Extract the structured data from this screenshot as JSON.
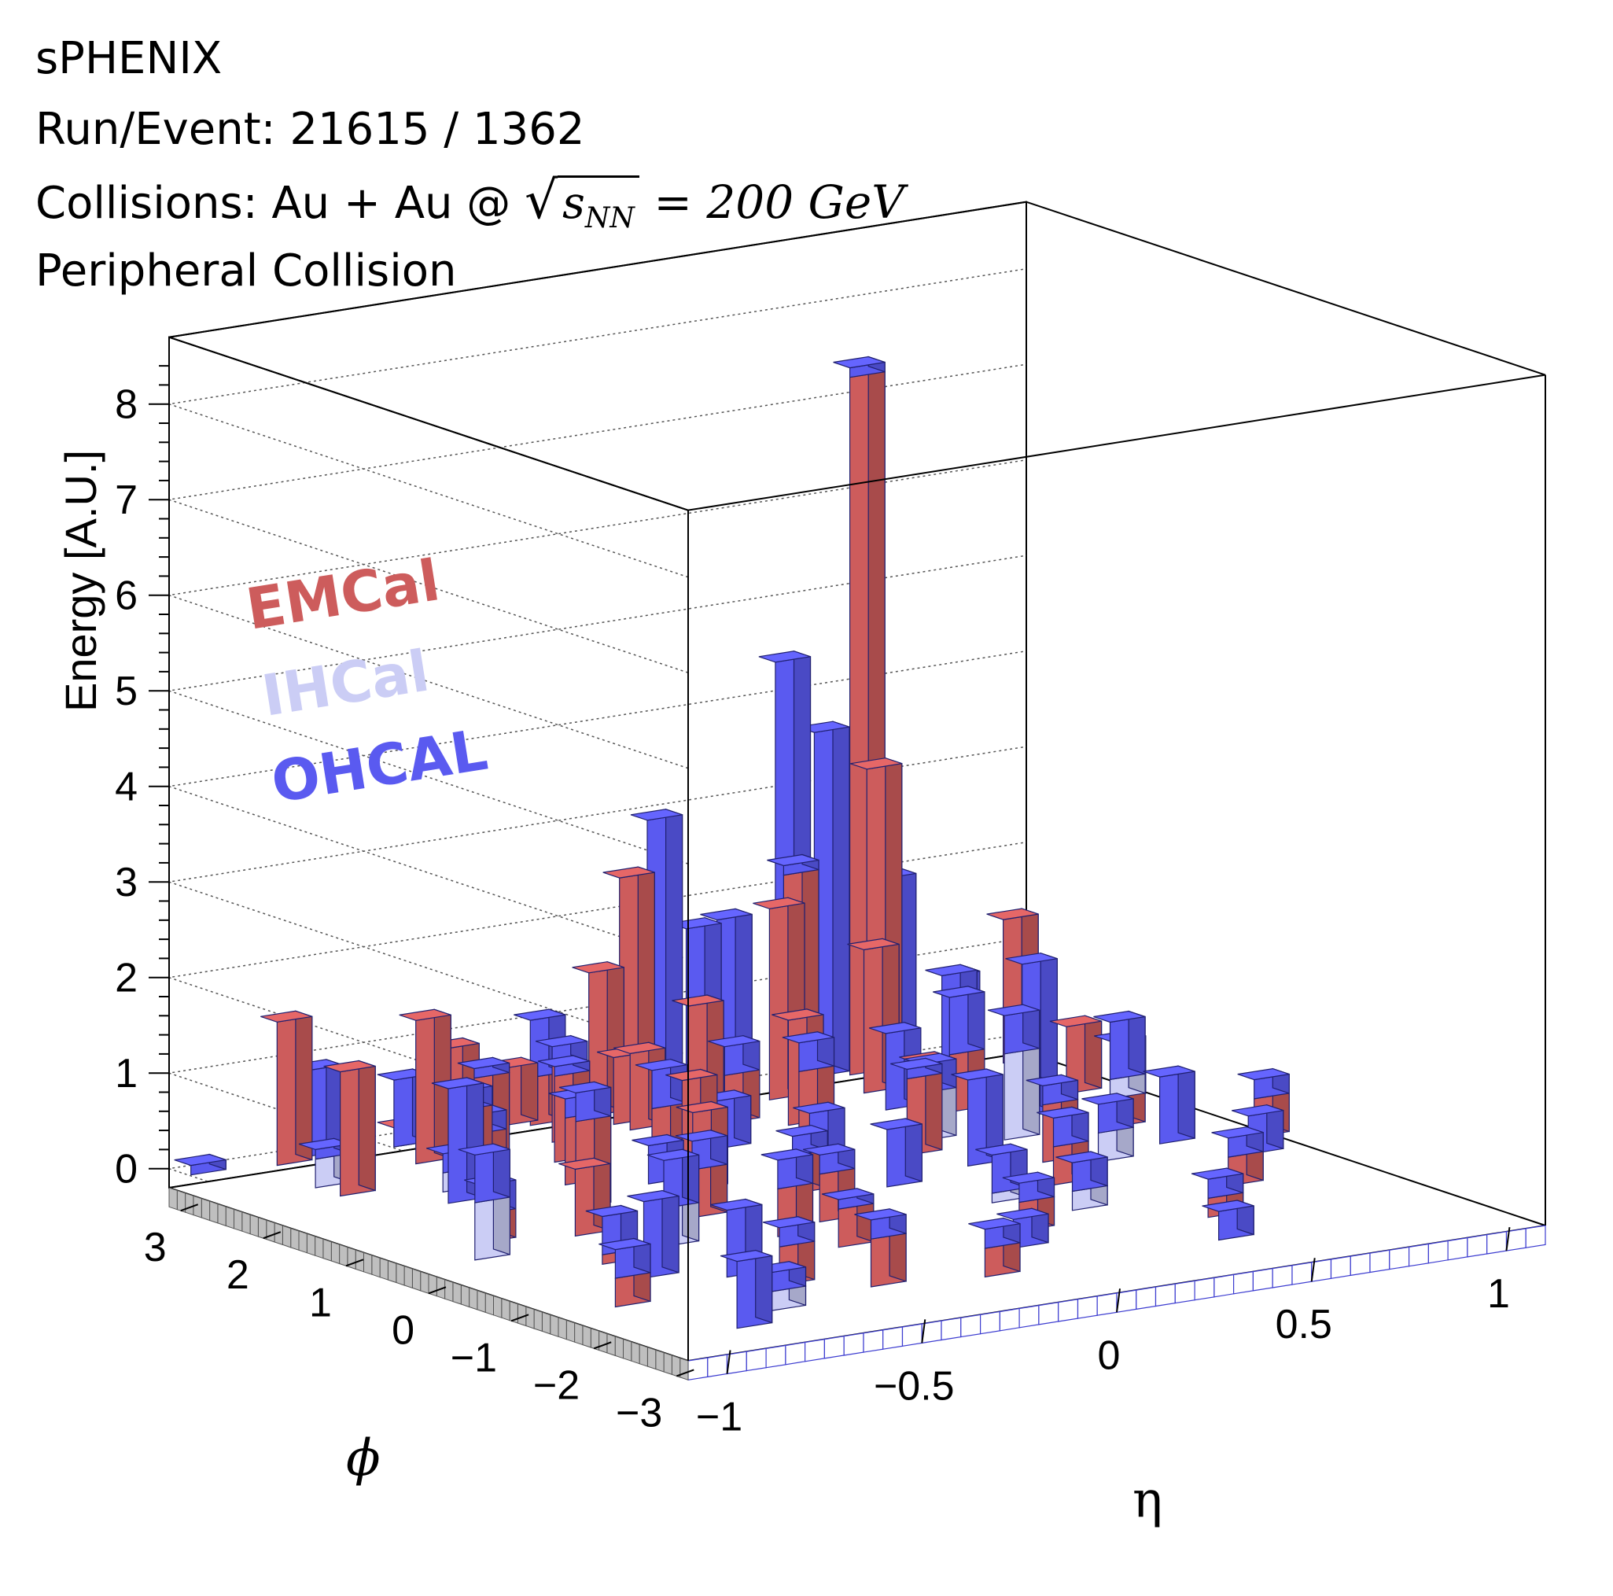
{
  "header": {
    "experiment": "sPHENIX",
    "run_event": "Run/Event: 21615 / 1362",
    "collisions_prefix": "Collisions: Au + Au @ ",
    "sqrt_symbol": "√",
    "sqrt_arg": "s",
    "sqrt_sub": "NN",
    "energy_text": " = 200 GeV",
    "centrality": "Peripheral Collision"
  },
  "colors": {
    "EMCal": "#cd5c5c",
    "IHCal": "#cbcdf5",
    "OHCAL": "#5a5af0"
  },
  "chart_data": {
    "type": "lego",
    "zlabel": "Energy [A.U.]",
    "xlabel": "η",
    "ylabel": "ϕ",
    "xlim": [
      -1.1,
      1.1
    ],
    "ylim": [
      -3.14,
      3.14
    ],
    "zlim": [
      -0.2,
      8.7
    ],
    "x_ticks": [
      "−1",
      "−0.5",
      "0",
      "0.5",
      "1"
    ],
    "x_tick_values": [
      -1,
      -0.5,
      0,
      0.5,
      1
    ],
    "y_ticks": [
      "−3",
      "−2",
      "−1",
      "0",
      "1",
      "2",
      "3"
    ],
    "y_tick_values": [
      -3,
      -2,
      -1,
      0,
      1,
      2,
      3
    ],
    "z_ticks": [
      "0",
      "1",
      "2",
      "3",
      "4",
      "5",
      "6",
      "7",
      "8"
    ],
    "z_tick_values": [
      0,
      1,
      2,
      3,
      4,
      5,
      6,
      7,
      8
    ],
    "legend": [
      {
        "name": "EMCal",
        "color": "#cd5c5c"
      },
      {
        "name": "IHCal",
        "color": "#cbcdf5"
      },
      {
        "name": "OHCAL",
        "color": "#5a5af0"
      }
    ],
    "towers": [
      {
        "eta": -1.05,
        "phi": 3.0,
        "EMCal": 0.0,
        "IHCal": 0.0,
        "OHCAL": 0.1
      },
      {
        "eta": -0.75,
        "phi": 3.0,
        "EMCal": 0.0,
        "IHCal": 0.0,
        "OHCAL": 0.9
      },
      {
        "eta": -0.4,
        "phi": 3.0,
        "EMCal": 0.9,
        "IHCal": 0.0,
        "OHCAL": 0.0
      },
      {
        "eta": -0.25,
        "phi": 3.0,
        "EMCal": 0.6,
        "IHCal": 0.0,
        "OHCAL": 0.0
      },
      {
        "eta": 0.05,
        "phi": 3.0,
        "EMCal": 2.4,
        "IHCal": 0.0,
        "OHCAL": 0.0
      },
      {
        "eta": 0.3,
        "phi": 3.0,
        "EMCal": 0.0,
        "IHCal": 0.0,
        "OHCAL": 1.8
      },
      {
        "eta": 0.45,
        "phi": 3.0,
        "EMCal": 0.0,
        "IHCal": 0.0,
        "OHCAL": 4.4
      },
      {
        "eta": 0.55,
        "phi": 3.0,
        "EMCal": 0.0,
        "IHCal": 0.0,
        "OHCAL": 3.6
      },
      {
        "eta": 0.35,
        "phi": 2.6,
        "EMCal": 2.0,
        "IHCal": 0.0,
        "OHCAL": 0.0
      },
      {
        "eta": 0.6,
        "phi": 2.6,
        "EMCal": 3.3,
        "IHCal": 0.0,
        "OHCAL": 0.0
      },
      {
        "eta": 0.8,
        "phi": 2.6,
        "EMCal": 0.0,
        "IHCal": 0.0,
        "OHCAL": 1.0
      },
      {
        "eta": -0.9,
        "phi": 2.2,
        "EMCal": 0.0,
        "IHCal": 0.3,
        "OHCAL": 0.1
      },
      {
        "eta": -0.5,
        "phi": 2.2,
        "EMCal": 0.3,
        "IHCal": 0.0,
        "OHCAL": 0.2
      },
      {
        "eta": 0.15,
        "phi": 2.2,
        "EMCal": 0.5,
        "IHCal": 0.0,
        "OHCAL": 0.3
      },
      {
        "eta": 0.95,
        "phi": 2.6,
        "EMCal": 1.5,
        "IHCal": 0.0,
        "OHCAL": 0.0
      },
      {
        "eta": -0.7,
        "phi": 1.6,
        "EMCal": 0.0,
        "IHCal": 0.2,
        "OHCAL": 0.2
      },
      {
        "eta": 0.0,
        "phi": 1.6,
        "EMCal": 0.0,
        "IHCal": 0.0,
        "OHCAL": 0.5
      },
      {
        "eta": 0.6,
        "phi": 1.6,
        "EMCal": 0.6,
        "IHCal": 0.0,
        "OHCAL": 0.6
      },
      {
        "eta": 0.9,
        "phi": 1.6,
        "EMCal": 0.7,
        "IHCal": 0.0,
        "OHCAL": 0.0
      },
      {
        "eta": -0.3,
        "phi": 1.0,
        "EMCal": 0.0,
        "IHCal": 0.0,
        "OHCAL": 0.4
      },
      {
        "eta": 0.4,
        "phi": 1.0,
        "EMCal": 0.0,
        "IHCal": 0.5,
        "OHCAL": 0.3
      },
      {
        "eta": 0.8,
        "phi": 0.6,
        "EMCal": 0.3,
        "IHCal": 0.2,
        "OHCAL": 0.6
      },
      {
        "eta": -0.9,
        "phi": 0.2,
        "EMCal": 0.3,
        "IHCal": 0.0,
        "OHCAL": 0.3
      },
      {
        "eta": -0.1,
        "phi": 0.2,
        "EMCal": 0.4,
        "IHCal": 0.0,
        "OHCAL": 0.2
      },
      {
        "eta": 0.35,
        "phi": 0.2,
        "EMCal": 0.0,
        "IHCal": 0.0,
        "OHCAL": 0.9
      },
      {
        "eta": -0.55,
        "phi": 2.9,
        "EMCal": 0.2,
        "IHCal": 0.0,
        "OHCAL": 0.0
      },
      {
        "eta": -0.05,
        "phi": 2.6,
        "EMCal": 0.7,
        "IHCal": 0.0,
        "OHCAL": 0.0
      },
      {
        "eta": 0.6,
        "phi": -0.2,
        "EMCal": 0.0,
        "IHCal": 0.3,
        "OHCAL": 0.3
      },
      {
        "eta": 1.0,
        "phi": -0.2,
        "EMCal": 0.4,
        "IHCal": 0.0,
        "OHCAL": 0.2
      },
      {
        "eta": -0.8,
        "phi": -0.8,
        "EMCal": 0.1,
        "IHCal": 0.0,
        "OHCAL": 0.4
      },
      {
        "eta": -0.35,
        "phi": -0.8,
        "EMCal": 0.5,
        "IHCal": 0.0,
        "OHCAL": 0.3
      },
      {
        "eta": 0.2,
        "phi": -0.8,
        "EMCal": 0.0,
        "IHCal": 0.1,
        "OHCAL": 0.4
      },
      {
        "eta": -0.65,
        "phi": -1.6,
        "EMCal": 0.0,
        "IHCal": 0.0,
        "OHCAL": 0.7
      },
      {
        "eta": 0.1,
        "phi": -1.6,
        "EMCal": 0.3,
        "IHCal": 0.0,
        "OHCAL": 0.2
      },
      {
        "eta": -1.0,
        "phi": -1.9,
        "EMCal": 0.3,
        "IHCal": 0.0,
        "OHCAL": 0.3
      },
      {
        "eta": -0.45,
        "phi": -2.4,
        "EMCal": 0.5,
        "IHCal": 0.0,
        "OHCAL": 0.2
      },
      {
        "eta": -0.9,
        "phi": -2.9,
        "EMCal": 0.0,
        "IHCal": 0.0,
        "OHCAL": 0.7
      },
      {
        "eta": -1.0,
        "phi": -0.2,
        "EMCal": 0.0,
        "IHCal": 0.6,
        "OHCAL": 0.5
      },
      {
        "eta": 0.7,
        "phi": 1.2,
        "EMCal": 0.0,
        "IHCal": 0.0,
        "OHCAL": 0.3
      },
      {
        "eta": -0.85,
        "phi": 2.9,
        "EMCal": 1.5,
        "IHCal": 0.0,
        "OHCAL": 0.0
      },
      {
        "eta": -0.55,
        "phi": 2.9,
        "EMCal": 0.0,
        "IHCal": 0.0,
        "OHCAL": 0.7
      },
      {
        "eta": -0.45,
        "phi": 2.9,
        "EMCal": 0.0,
        "IHCal": 0.0,
        "OHCAL": 0.5
      },
      {
        "eta": -0.2,
        "phi": 2.9,
        "EMCal": 0.5,
        "IHCal": 0.0,
        "OHCAL": 0.6
      },
      {
        "eta": -0.05,
        "phi": 2.9,
        "EMCal": 1.5,
        "IHCal": 0.0,
        "OHCAL": 0.0
      },
      {
        "eta": 0.1,
        "phi": 2.9,
        "EMCal": 0.0,
        "IHCal": 0.0,
        "OHCAL": 3.0
      },
      {
        "eta": 0.2,
        "phi": 2.9,
        "EMCal": 0.0,
        "IHCal": 0.0,
        "OHCAL": 1.8
      },
      {
        "eta": 0.45,
        "phi": 2.9,
        "EMCal": 2.2,
        "IHCal": 0.0,
        "OHCAL": 0.1
      },
      {
        "eta": 0.62,
        "phi": 2.9,
        "EMCal": 7.3,
        "IHCal": 0.0,
        "OHCAL": 0.1
      },
      {
        "eta": 0.7,
        "phi": 2.9,
        "EMCal": 0.0,
        "IHCal": 0.0,
        "OHCAL": 2.0
      },
      {
        "eta": -0.6,
        "phi": 2.4,
        "EMCal": 1.5,
        "IHCal": 0.0,
        "OHCAL": 0.0
      },
      {
        "eta": -0.45,
        "phi": 2.4,
        "EMCal": 0.8,
        "IHCal": 0.0,
        "OHCAL": 0.1
      },
      {
        "eta": -0.25,
        "phi": 2.4,
        "EMCal": 0.8,
        "IHCal": 0.0,
        "OHCAL": 0.2
      },
      {
        "eta": -0.05,
        "phi": 2.4,
        "EMCal": 0.8,
        "IHCal": 0.0,
        "OHCAL": 0.0
      },
      {
        "eta": 0.1,
        "phi": 2.4,
        "EMCal": 1.2,
        "IHCal": 0.0,
        "OHCAL": 0.0
      },
      {
        "eta": 0.55,
        "phi": 2.4,
        "EMCal": 1.5,
        "IHCal": 0.0,
        "OHCAL": 0.0
      },
      {
        "eta": 0.75,
        "phi": 2.4,
        "EMCal": 0.0,
        "IHCal": 0.1,
        "OHCAL": 1.0
      },
      {
        "eta": -0.9,
        "phi": 1.9,
        "EMCal": 1.3,
        "IHCal": 0.0,
        "OHCAL": 0.0
      },
      {
        "eta": -0.6,
        "phi": 1.9,
        "EMCal": 0.7,
        "IHCal": 0.0,
        "OHCAL": 0.2
      },
      {
        "eta": -0.35,
        "phi": 1.9,
        "EMCal": 0.9,
        "IHCal": 0.0,
        "OHCAL": 0.1
      },
      {
        "eta": -0.1,
        "phi": 1.9,
        "EMCal": 0.4,
        "IHCal": 0.0,
        "OHCAL": 0.4
      },
      {
        "eta": 0.25,
        "phi": 1.9,
        "EMCal": 1.1,
        "IHCal": 0.0,
        "OHCAL": 0.0
      },
      {
        "eta": 0.5,
        "phi": 1.9,
        "EMCal": 0.0,
        "IHCal": 0.0,
        "OHCAL": 0.8
      },
      {
        "eta": 0.85,
        "phi": 1.9,
        "EMCal": 0.0,
        "IHCal": 0.0,
        "OHCAL": 1.3
      },
      {
        "eta": -0.75,
        "phi": 1.3,
        "EMCal": 0.0,
        "IHCal": 0.0,
        "OHCAL": 1.2
      },
      {
        "eta": -0.45,
        "phi": 1.3,
        "EMCal": 0.7,
        "IHCal": 0.0,
        "OHCAL": 0.2
      },
      {
        "eta": -0.15,
        "phi": 1.3,
        "EMCal": 0.9,
        "IHCal": 0.0,
        "OHCAL": 0.0
      },
      {
        "eta": 0.15,
        "phi": 1.3,
        "EMCal": 0.8,
        "IHCal": 0.0,
        "OHCAL": 0.3
      },
      {
        "eta": 0.45,
        "phi": 1.3,
        "EMCal": 0.7,
        "IHCal": 0.0,
        "OHCAL": 0.0
      },
      {
        "eta": 0.95,
        "phi": 1.3,
        "EMCal": 0.0,
        "IHCal": 0.0,
        "OHCAL": 0.6
      },
      {
        "eta": -0.55,
        "phi": 0.7,
        "EMCal": 0.9,
        "IHCal": 0.0,
        "OHCAL": 0.3
      },
      {
        "eta": -0.25,
        "phi": 0.7,
        "EMCal": 0.8,
        "IHCal": 0.0,
        "OHCAL": 0.0
      },
      {
        "eta": 0.05,
        "phi": 0.7,
        "EMCal": 0.0,
        "IHCal": 0.0,
        "OHCAL": 0.6
      },
      {
        "eta": 0.3,
        "phi": 0.7,
        "EMCal": 0.8,
        "IHCal": 0.0,
        "OHCAL": 0.1
      },
      {
        "eta": 0.55,
        "phi": 0.7,
        "EMCal": 0.0,
        "IHCal": 0.9,
        "OHCAL": 0.4
      },
      {
        "eta": -0.7,
        "phi": 0.0,
        "EMCal": 0.7,
        "IHCal": 0.0,
        "OHCAL": 0.0
      },
      {
        "eta": -0.4,
        "phi": 0.0,
        "EMCal": 0.5,
        "IHCal": 0.0,
        "OHCAL": 0.3
      },
      {
        "eta": 0.1,
        "phi": 0.0,
        "EMCal": 0.0,
        "IHCal": 0.0,
        "OHCAL": 0.6
      },
      {
        "eta": 0.5,
        "phi": 0.0,
        "EMCal": 0.6,
        "IHCal": 0.0,
        "OHCAL": 0.2
      },
      {
        "eta": 0.8,
        "phi": 0.0,
        "EMCal": 0.0,
        "IHCal": 0.0,
        "OHCAL": 0.7
      },
      {
        "eta": -0.6,
        "phi": -0.6,
        "EMCal": 0.0,
        "IHCal": 0.4,
        "OHCAL": 0.5
      },
      {
        "eta": -0.2,
        "phi": -0.6,
        "EMCal": 0.5,
        "IHCal": 0.0,
        "OHCAL": 0.2
      },
      {
        "eta": 0.4,
        "phi": -0.6,
        "EMCal": 0.4,
        "IHCal": 0.0,
        "OHCAL": 0.3
      },
      {
        "eta": 0.9,
        "phi": -0.6,
        "EMCal": 0.0,
        "IHCal": 0.0,
        "OHCAL": 0.4
      },
      {
        "eta": -0.8,
        "phi": -1.3,
        "EMCal": 0.0,
        "IHCal": 0.0,
        "OHCAL": 0.8
      },
      {
        "eta": -0.3,
        "phi": -1.3,
        "EMCal": 0.4,
        "IHCal": 0.0,
        "OHCAL": 0.1
      },
      {
        "eta": 0.3,
        "phi": -1.3,
        "EMCal": 0.0,
        "IHCal": 0.2,
        "OHCAL": 0.3
      },
      {
        "eta": 0.7,
        "phi": -1.3,
        "EMCal": 0.3,
        "IHCal": 0.0,
        "OHCAL": 0.2
      },
      {
        "eta": -0.6,
        "phi": -2.0,
        "EMCal": 0.4,
        "IHCal": 0.0,
        "OHCAL": 0.2
      },
      {
        "eta": 0.0,
        "phi": -2.0,
        "EMCal": 0.0,
        "IHCal": 0.0,
        "OHCAL": 0.3
      },
      {
        "eta": 0.5,
        "phi": -2.0,
        "EMCal": 0.2,
        "IHCal": 0.0,
        "OHCAL": 0.2
      },
      {
        "eta": -0.2,
        "phi": -2.6,
        "EMCal": 0.3,
        "IHCal": 0.0,
        "OHCAL": 0.2
      },
      {
        "eta": 0.4,
        "phi": -2.6,
        "EMCal": 0.0,
        "IHCal": 0.0,
        "OHCAL": 0.3
      },
      {
        "eta": -0.75,
        "phi": -2.6,
        "EMCal": 0.0,
        "IHCal": 0.2,
        "OHCAL": 0.2
      }
    ]
  }
}
